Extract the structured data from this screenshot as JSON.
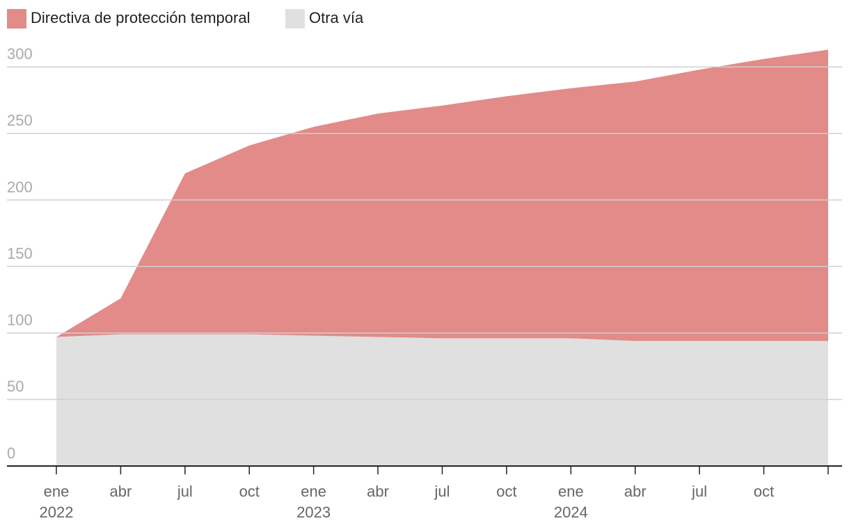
{
  "chart_data": {
    "type": "stacked-area",
    "categories": [
      "ene",
      "abr",
      "jul",
      "oct",
      "ene",
      "abr",
      "jul",
      "oct",
      "ene",
      "abr",
      "jul",
      "oct",
      null
    ],
    "x_year_labels": [
      "2022",
      null,
      null,
      null,
      "2023",
      null,
      null,
      null,
      "2024",
      null,
      null,
      null,
      null
    ],
    "series": [
      {
        "name": "Otra vía",
        "color": "#e0e0e0",
        "values": [
          97,
          99,
          99,
          99,
          98,
          97,
          96,
          96,
          96,
          94,
          94,
          94,
          94
        ]
      },
      {
        "name": "Directiva de protección temporal",
        "color": "#e28b89",
        "values": [
          0,
          27,
          121,
          142,
          157,
          168,
          175,
          182,
          188,
          195,
          204,
          212,
          219
        ]
      }
    ],
    "ylim": [
      0,
      320
    ],
    "yticks": [
      0,
      50,
      100,
      150,
      200,
      250,
      300
    ],
    "grid": true
  }
}
